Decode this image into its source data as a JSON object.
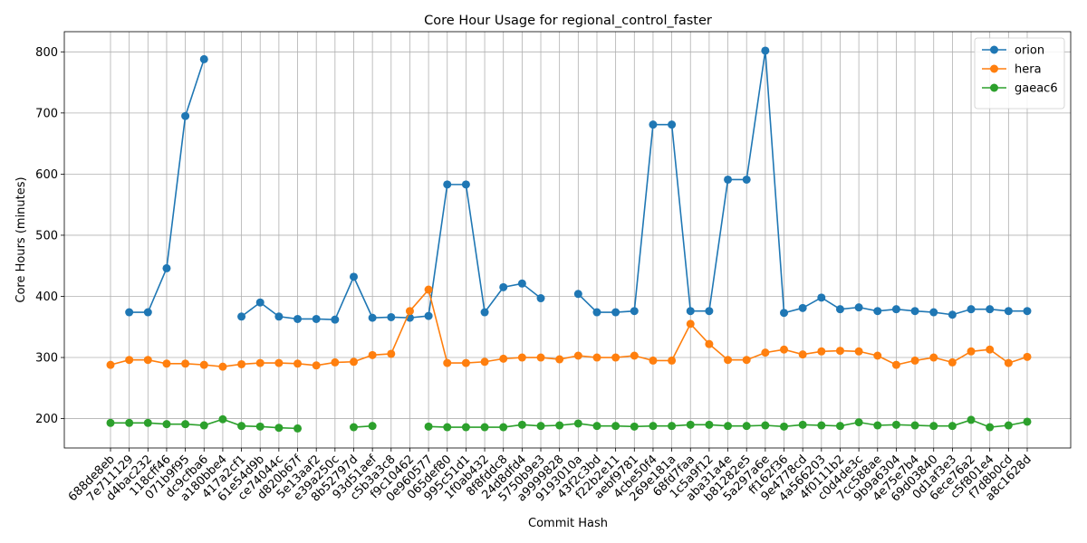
{
  "chart_data": {
    "type": "line",
    "title": "Core Hour Usage for regional_control_faster",
    "xlabel": "Commit Hash",
    "ylabel": "Core Hours (minutes)",
    "ylim": [
      152,
      833
    ],
    "yticks": [
      200,
      300,
      400,
      500,
      600,
      700,
      800
    ],
    "grid": true,
    "legend_position": "top-right",
    "categories": [
      "688de8eb",
      "7e711129",
      "d4bac232",
      "118cff46",
      "071b9f95",
      "dc9cfba6",
      "a180bbe4",
      "417a2cf1",
      "61e54d9b",
      "ce74044c",
      "d820b67f",
      "5e13aaf2",
      "e39a250c",
      "8b52797d",
      "93d51aef",
      "c5b3a3c8",
      "f9c10462",
      "0e960577",
      "065def80",
      "995c51d1",
      "1f0ab432",
      "8f8fddc8",
      "24d8dfd4",
      "5750b9e3",
      "a9999828",
      "9193010a",
      "43f2c3bd",
      "f22b2e11",
      "aebf9781",
      "4cbe50f4",
      "269e181a",
      "68fd7faa",
      "1c5a9f12",
      "aba31a4e",
      "b81282e5",
      "5a297a6e",
      "ff162f36",
      "9e4778cd",
      "4a566203",
      "4f0111b2",
      "c0d4de3c",
      "7cc588ae",
      "9b9a6304",
      "4e75e7b4",
      "69d03840",
      "0d1af3e3",
      "6ece76a2",
      "c5f801e4",
      "f7d8b0cd",
      "a8c1628d"
    ],
    "series": [
      {
        "name": "orion",
        "color": "#1f77b4",
        "values": [
          null,
          374,
          374,
          446,
          695,
          788,
          null,
          367,
          390,
          367,
          363,
          363,
          362,
          432,
          365,
          366,
          365,
          368,
          583,
          583,
          374,
          415,
          421,
          397,
          null,
          404,
          374,
          374,
          376,
          681,
          681,
          376,
          376,
          591,
          591,
          802,
          373,
          381,
          398,
          379,
          382,
          376,
          379,
          376,
          374,
          370,
          379,
          379,
          376,
          376
        ]
      },
      {
        "name": "hera",
        "color": "#ff7f0e",
        "values": [
          288,
          296,
          296,
          290,
          290,
          288,
          285,
          289,
          291,
          291,
          290,
          287,
          292,
          293,
          304,
          306,
          376,
          411,
          291,
          291,
          293,
          298,
          300,
          300,
          297,
          303,
          300,
          300,
          303,
          295,
          295,
          355,
          322,
          296,
          296,
          308,
          313,
          305,
          310,
          311,
          310,
          303,
          288,
          295,
          300,
          292,
          310,
          313,
          291,
          301
        ]
      },
      {
        "name": "gaeac6",
        "color": "#2ca02c",
        "values": [
          193,
          193,
          193,
          191,
          191,
          189,
          199,
          188,
          187,
          185,
          184,
          null,
          null,
          186,
          188,
          null,
          null,
          187,
          186,
          186,
          186,
          186,
          190,
          188,
          189,
          192,
          188,
          188,
          187,
          188,
          188,
          190,
          190,
          188,
          188,
          189,
          187,
          190,
          189,
          188,
          194,
          189,
          190,
          189,
          188,
          188,
          198,
          186,
          189,
          195
        ]
      }
    ]
  }
}
